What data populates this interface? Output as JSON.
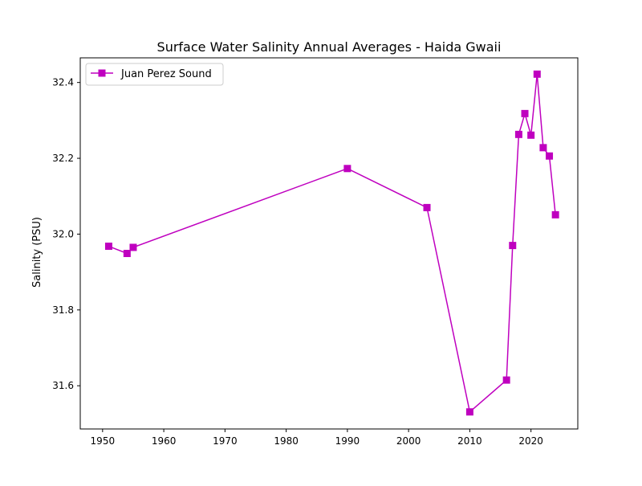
{
  "chart_data": {
    "type": "line",
    "title": "Surface Water Salinity Annual Averages - Haida Gwaii",
    "xlabel": "",
    "ylabel": "Salinity (PSU)",
    "xlim": [
      1946.35,
      2027.65
    ],
    "ylim": [
      31.486,
      32.465
    ],
    "x_ticks": [
      1950,
      1960,
      1970,
      1980,
      1990,
      2000,
      2010,
      2020
    ],
    "y_ticks": [
      31.6,
      31.8,
      32.0,
      32.2,
      32.4
    ],
    "x_tick_labels": [
      "1950",
      "1960",
      "1970",
      "1980",
      "1990",
      "2000",
      "2010",
      "2020"
    ],
    "y_tick_labels": [
      "31.6",
      "31.8",
      "32.0",
      "32.2",
      "32.4"
    ],
    "grid": false,
    "legend_position": "upper left",
    "series": [
      {
        "name": "Juan Perez Sound",
        "color": "#bf00bf",
        "marker": "square",
        "x": [
          1951,
          1954,
          1955,
          1990,
          2003,
          2010,
          2016,
          2017,
          2018,
          2019,
          2020,
          2021,
          2022,
          2023,
          2024
        ],
        "y": [
          31.968,
          31.949,
          31.965,
          32.173,
          32.07,
          31.531,
          31.615,
          31.97,
          32.263,
          32.318,
          32.261,
          32.422,
          32.228,
          32.206,
          32.051
        ]
      }
    ]
  }
}
